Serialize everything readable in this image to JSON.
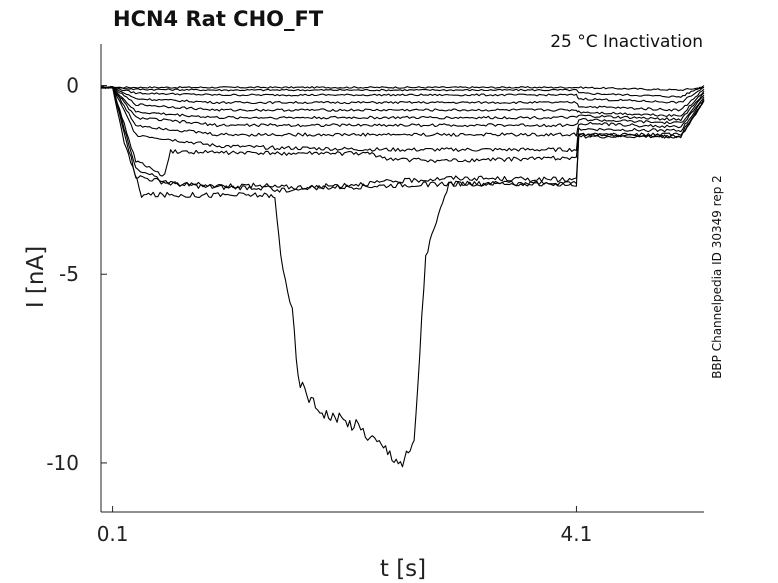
{
  "chart_data": {
    "type": "line",
    "title": "HCN4  Rat  CHO_FT",
    "annotation": "25 °C  Inactivation",
    "side_label": "BBP Channelpedia ID 30349 rep 2",
    "xlabel": "t [s]",
    "ylabel": "I [nA]",
    "xlim": [
      0.0,
      5.2
    ],
    "ylim": [
      -11.3,
      1.1
    ],
    "x_ticks": [
      0.1,
      4.1
    ],
    "x_tick_labels": [
      "0.1",
      "4.1"
    ],
    "y_ticks": [
      0,
      -5,
      -10
    ],
    "y_tick_labels": [
      "0",
      "-5",
      "-10"
    ],
    "grid": false,
    "series": [
      {
        "x": [
          0.0,
          0.1,
          4.1,
          5.0,
          5.2
        ],
        "y": [
          -0.05,
          -0.05,
          -0.05,
          -0.12,
          -0.05
        ]
      },
      {
        "x": [
          0.0,
          0.1,
          0.3,
          1.0,
          4.1,
          4.12,
          5.0,
          5.2
        ],
        "y": [
          -0.05,
          -0.05,
          -0.1,
          -0.12,
          -0.12,
          -0.2,
          -0.3,
          0.0
        ]
      },
      {
        "x": [
          0.0,
          0.1,
          0.3,
          1.0,
          4.1,
          4.12,
          5.0,
          5.2
        ],
        "y": [
          -0.05,
          -0.05,
          -0.2,
          -0.25,
          -0.25,
          -0.35,
          -0.45,
          -0.05
        ]
      },
      {
        "x": [
          0.0,
          0.1,
          0.3,
          1.0,
          4.1,
          4.12,
          5.0,
          5.2
        ],
        "y": [
          -0.05,
          -0.05,
          -0.35,
          -0.45,
          -0.45,
          -0.55,
          -0.65,
          -0.1
        ]
      },
      {
        "x": [
          0.0,
          0.1,
          0.3,
          1.0,
          4.1,
          4.12,
          5.0,
          5.2
        ],
        "y": [
          -0.05,
          -0.05,
          -0.5,
          -0.65,
          -0.65,
          -0.7,
          -0.8,
          -0.15
        ]
      },
      {
        "x": [
          0.0,
          0.1,
          0.3,
          1.0,
          4.1,
          4.12,
          5.0,
          5.2
        ],
        "y": [
          -0.05,
          -0.05,
          -0.7,
          -0.85,
          -0.85,
          -0.8,
          -0.9,
          -0.2
        ]
      },
      {
        "x": [
          0.0,
          0.1,
          0.3,
          1.0,
          4.1,
          4.12,
          5.0,
          5.2
        ],
        "y": [
          -0.05,
          -0.05,
          -0.85,
          -1.05,
          -1.05,
          -0.9,
          -1.0,
          -0.25
        ]
      },
      {
        "x": [
          0.0,
          0.1,
          0.3,
          1.0,
          4.1,
          4.12,
          5.0,
          5.2
        ],
        "y": [
          -0.05,
          -0.05,
          -1.05,
          -1.3,
          -1.3,
          -1.0,
          -1.1,
          -0.3
        ]
      },
      {
        "x": [
          0.0,
          0.1,
          0.3,
          1.0,
          1.5,
          2.5,
          4.1,
          4.12,
          5.0,
          5.2
        ],
        "y": [
          -0.05,
          -0.05,
          -1.3,
          -1.6,
          -1.65,
          -1.7,
          -1.7,
          -1.15,
          -1.2,
          -0.35
        ]
      },
      {
        "x": [
          0.0,
          0.1,
          0.3,
          0.55,
          0.6,
          1.5,
          2.3,
          2.5,
          3.0,
          4.1,
          4.12,
          5.0,
          5.2
        ],
        "y": [
          -0.05,
          -0.05,
          -2.0,
          -2.4,
          -1.75,
          -1.8,
          -1.8,
          -1.95,
          -2.0,
          -1.9,
          -1.3,
          -1.3,
          -0.4
        ]
      },
      {
        "x": [
          0.0,
          0.1,
          0.3,
          0.6,
          1.0,
          1.45,
          1.5,
          2.0,
          3.0,
          4.1,
          4.12,
          5.0,
          5.2
        ],
        "y": [
          -0.05,
          -0.05,
          -2.2,
          -2.6,
          -2.65,
          -2.65,
          -2.8,
          -2.65,
          -2.45,
          -2.5,
          -1.3,
          -1.35,
          -0.4
        ]
      },
      {
        "x": [
          0.0,
          0.1,
          0.3,
          0.6,
          1.0,
          2.0,
          3.0,
          4.1,
          4.12,
          5.0,
          5.2
        ],
        "y": [
          -0.05,
          -0.05,
          -2.4,
          -2.6,
          -2.7,
          -2.7,
          -2.6,
          -2.6,
          -1.35,
          -1.35,
          -0.4
        ]
      },
      {
        "x": [
          0.0,
          0.1,
          0.2,
          0.35,
          1.45,
          1.5,
          1.55,
          1.65,
          1.7,
          1.85,
          2.0,
          2.2,
          2.4,
          2.6,
          2.7,
          2.75,
          2.8,
          3.0,
          4.1
        ],
        "y": [
          -0.05,
          -0.05,
          -1.5,
          -2.9,
          -2.9,
          -3.0,
          -4.5,
          -6.0,
          -7.8,
          -8.5,
          -8.8,
          -9.0,
          -9.5,
          -10.0,
          -9.5,
          -7.0,
          -4.5,
          -2.6,
          -2.6
        ]
      }
    ]
  }
}
